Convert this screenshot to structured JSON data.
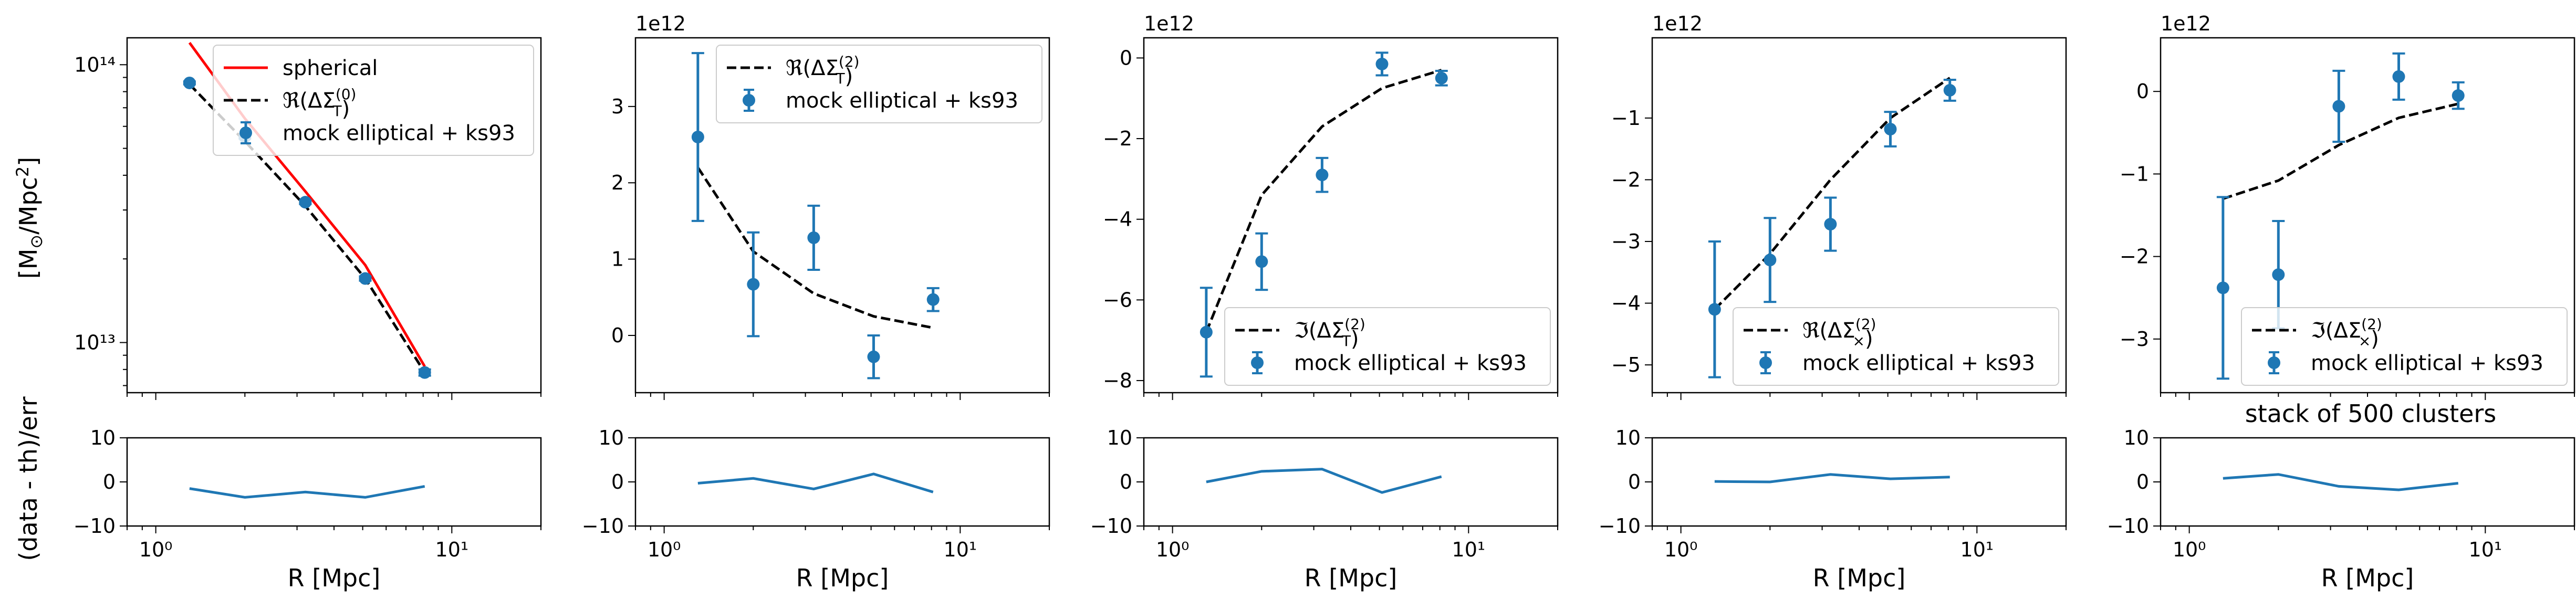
{
  "figure": {
    "annotation": "stack of 500 clusters",
    "ylabel_top": "[M_⊙/Mpc²]",
    "ylabel_bottom": "(data - th)/err",
    "xlabel": "R [Mpc]"
  },
  "chart_data": [
    {
      "type": "line",
      "panel": "top-1",
      "yscale": "log",
      "xscale": "log",
      "xlim": [
        0.8,
        20
      ],
      "ylim": [
        6600000000000.0,
        125000000000000.0
      ],
      "y_ticks": [
        10000000000000.0,
        100000000000000.0
      ],
      "y_tick_labels": [
        "10¹³",
        "10¹⁴"
      ],
      "x_ticks": [
        1,
        10
      ],
      "x_tick_labels": [],
      "offset_text": "",
      "legend": "top-right",
      "series": [
        {
          "name": "spherical",
          "kind": "line",
          "color": "#ff0000",
          "x": [
            1.3,
            2.0,
            3.2,
            5.1,
            8.1
          ],
          "y": [
            120000000000000.0,
            64000000000000.0,
            35000000000000.0,
            19000000000000.0,
            8200000000000.0
          ]
        },
        {
          "name": "ℜ(ΔΣ_T^(0))",
          "kind": "dashed",
          "color": "#000000",
          "x": [
            1.3,
            2.0,
            3.2,
            5.1,
            8.1
          ],
          "y": [
            85000000000000.0,
            53000000000000.0,
            31000000000000.0,
            17000000000000.0,
            7800000000000.0
          ]
        },
        {
          "name": "mock elliptical + ks93",
          "kind": "errorbar",
          "color": "#1f77b4",
          "x": [
            1.3,
            2.0,
            3.2,
            5.1,
            8.1
          ],
          "y": [
            86000000000000.0,
            55000000000000.0,
            32000000000000.0,
            17000000000000.0,
            7800000000000.0
          ],
          "err": [
            1000000000000.0,
            800000000000.0,
            500000000000.0,
            300000000000.0,
            200000000000.0
          ]
        }
      ]
    },
    {
      "type": "line",
      "panel": "top-2",
      "xscale": "log",
      "xlim": [
        0.8,
        20
      ],
      "ylim": [
        -0.75,
        3.9
      ],
      "y_ticks": [
        0,
        1,
        2,
        3
      ],
      "y_tick_labels": [
        "0",
        "1",
        "2",
        "3"
      ],
      "x_ticks": [
        1,
        10
      ],
      "x_tick_labels": [],
      "offset_text": "1e12",
      "legend": "top-right",
      "series": [
        {
          "name": "ℜ(ΔΣ_T^(2))",
          "kind": "dashed",
          "color": "#000000",
          "x": [
            1.3,
            2.0,
            3.2,
            5.1,
            8.1
          ],
          "y": [
            2.2,
            1.1,
            0.55,
            0.25,
            0.1
          ]
        },
        {
          "name": "mock elliptical + ks93",
          "kind": "errorbar",
          "color": "#1f77b4",
          "x": [
            1.3,
            2.0,
            3.2,
            5.1,
            8.1
          ],
          "y": [
            2.6,
            0.67,
            1.28,
            -0.28,
            0.47
          ],
          "err": [
            1.1,
            0.68,
            0.42,
            0.28,
            0.15
          ]
        }
      ]
    },
    {
      "type": "line",
      "panel": "top-3",
      "xscale": "log",
      "xlim": [
        0.8,
        20
      ],
      "ylim": [
        -8.3,
        0.5
      ],
      "y_ticks": [
        0,
        -2,
        -4,
        -6,
        -8
      ],
      "y_tick_labels": [
        "0",
        "−2",
        "−4",
        "−6",
        "−8"
      ],
      "x_ticks": [
        1,
        10
      ],
      "x_tick_labels": [],
      "offset_text": "1e12",
      "legend": "bottom-right",
      "series": [
        {
          "name": "ℑ(ΔΣ_T^(2))",
          "kind": "dashed",
          "color": "#000000",
          "x": [
            1.3,
            2.0,
            3.2,
            5.1,
            8.1
          ],
          "y": [
            -6.8,
            -3.4,
            -1.7,
            -0.75,
            -0.3
          ]
        },
        {
          "name": "mock elliptical + ks93",
          "kind": "errorbar",
          "color": "#1f77b4",
          "x": [
            1.3,
            2.0,
            3.2,
            5.1,
            8.1
          ],
          "y": [
            -6.8,
            -5.05,
            -2.9,
            -0.15,
            -0.5
          ],
          "err": [
            1.1,
            0.7,
            0.42,
            0.28,
            0.18
          ]
        }
      ]
    },
    {
      "type": "line",
      "panel": "top-4",
      "xscale": "log",
      "xlim": [
        0.8,
        20
      ],
      "ylim": [
        -5.45,
        0.3
      ],
      "y_ticks": [
        -1,
        -2,
        -3,
        -4,
        -5
      ],
      "y_tick_labels": [
        "−1",
        "−2",
        "−3",
        "−4",
        "−5"
      ],
      "x_ticks": [
        1,
        10
      ],
      "x_tick_labels": [],
      "offset_text": "1e12",
      "legend": "bottom-right",
      "series": [
        {
          "name": "ℜ(ΔΣ_×^(2))",
          "kind": "dashed",
          "color": "#000000",
          "x": [
            1.3,
            2.0,
            3.2,
            5.1,
            8.1
          ],
          "y": [
            -4.1,
            -3.2,
            -2.0,
            -1.0,
            -0.35
          ]
        },
        {
          "name": "mock elliptical + ks93",
          "kind": "errorbar",
          "color": "#1f77b4",
          "x": [
            1.3,
            2.0,
            3.2,
            5.1,
            8.1
          ],
          "y": [
            -4.1,
            -3.3,
            -2.72,
            -1.18,
            -0.55
          ],
          "err": [
            1.1,
            0.68,
            0.43,
            0.28,
            0.17
          ]
        }
      ]
    },
    {
      "type": "line",
      "panel": "top-5",
      "xscale": "log",
      "xlim": [
        0.8,
        20
      ],
      "ylim": [
        -3.65,
        0.65
      ],
      "y_ticks": [
        0,
        -1,
        -2,
        -3
      ],
      "y_tick_labels": [
        "0",
        "−1",
        "−2",
        "−3"
      ],
      "x_ticks": [
        1,
        10
      ],
      "x_tick_labels": [],
      "offset_text": "1e12",
      "legend": "bottom-right",
      "series": [
        {
          "name": "ℑ(ΔΣ_×^(2))",
          "kind": "dashed",
          "color": "#000000",
          "x": [
            1.3,
            2.0,
            3.2,
            5.1,
            8.1
          ],
          "y": [
            -1.3,
            -1.08,
            -0.65,
            -0.32,
            -0.15
          ]
        },
        {
          "name": "mock elliptical + ks93",
          "kind": "errorbar",
          "color": "#1f77b4",
          "x": [
            1.3,
            2.0,
            3.2,
            5.1,
            8.1
          ],
          "y": [
            -2.38,
            -2.22,
            -0.18,
            0.18,
            -0.05
          ],
          "err": [
            1.1,
            0.65,
            0.43,
            0.28,
            0.16
          ]
        }
      ]
    },
    {
      "type": "line",
      "panel": "bottom-1",
      "xscale": "log",
      "xlim": [
        0.8,
        20
      ],
      "ylim": [
        -10,
        10
      ],
      "y_ticks": [
        10,
        0,
        -10
      ],
      "y_tick_labels": [
        "10",
        "0",
        "−10"
      ],
      "x_ticks": [
        1,
        10
      ],
      "x_tick_labels": [
        "10⁰",
        "10¹"
      ],
      "series": [
        {
          "kind": "line",
          "color": "#1f77b4",
          "x": [
            1.3,
            2.0,
            3.2,
            5.1,
            8.1
          ],
          "y": [
            -1.5,
            -3.5,
            -2.3,
            -3.5,
            -1.0
          ]
        }
      ]
    },
    {
      "type": "line",
      "panel": "bottom-2",
      "xscale": "log",
      "xlim": [
        0.8,
        20
      ],
      "ylim": [
        -10,
        10
      ],
      "y_ticks": [
        10,
        0,
        -10
      ],
      "y_tick_labels": [
        "10",
        "0",
        "−10"
      ],
      "x_ticks": [
        1,
        10
      ],
      "x_tick_labels": [
        "10⁰",
        "10¹"
      ],
      "series": [
        {
          "kind": "line",
          "color": "#1f77b4",
          "x": [
            1.3,
            2.0,
            3.2,
            5.1,
            8.1
          ],
          "y": [
            -0.3,
            0.8,
            -1.6,
            1.8,
            -2.3
          ]
        }
      ]
    },
    {
      "type": "line",
      "panel": "bottom-3",
      "xscale": "log",
      "xlim": [
        0.8,
        20
      ],
      "ylim": [
        -10,
        10
      ],
      "y_ticks": [
        10,
        0,
        -10
      ],
      "y_tick_labels": [
        "10",
        "0",
        "−10"
      ],
      "x_ticks": [
        1,
        10
      ],
      "x_tick_labels": [
        "10⁰",
        "10¹"
      ],
      "series": [
        {
          "kind": "line",
          "color": "#1f77b4",
          "x": [
            1.3,
            2.0,
            3.2,
            5.1,
            8.1
          ],
          "y": [
            0.0,
            2.4,
            2.9,
            -2.4,
            1.2
          ]
        }
      ]
    },
    {
      "type": "line",
      "panel": "bottom-4",
      "xscale": "log",
      "xlim": [
        0.8,
        20
      ],
      "ylim": [
        -10,
        10
      ],
      "y_ticks": [
        10,
        0,
        -10
      ],
      "y_tick_labels": [
        "10",
        "0",
        "−10"
      ],
      "x_ticks": [
        1,
        10
      ],
      "x_tick_labels": [
        "10⁰",
        "10¹"
      ],
      "series": [
        {
          "kind": "line",
          "color": "#1f77b4",
          "x": [
            1.3,
            2.0,
            3.2,
            5.1,
            8.1
          ],
          "y": [
            0.1,
            0.0,
            1.7,
            0.7,
            1.1
          ]
        }
      ]
    },
    {
      "type": "line",
      "panel": "bottom-5",
      "xscale": "log",
      "xlim": [
        0.8,
        20
      ],
      "ylim": [
        -10,
        10
      ],
      "y_ticks": [
        10,
        0,
        -10
      ],
      "y_tick_labels": [
        "10",
        "0",
        "−10"
      ],
      "x_ticks": [
        1,
        10
      ],
      "x_tick_labels": [
        "10⁰",
        "10¹"
      ],
      "series": [
        {
          "kind": "line",
          "color": "#1f77b4",
          "x": [
            1.3,
            2.0,
            3.2,
            5.1,
            8.1
          ],
          "y": [
            0.8,
            1.7,
            -1.0,
            -1.8,
            -0.3
          ]
        }
      ]
    }
  ]
}
